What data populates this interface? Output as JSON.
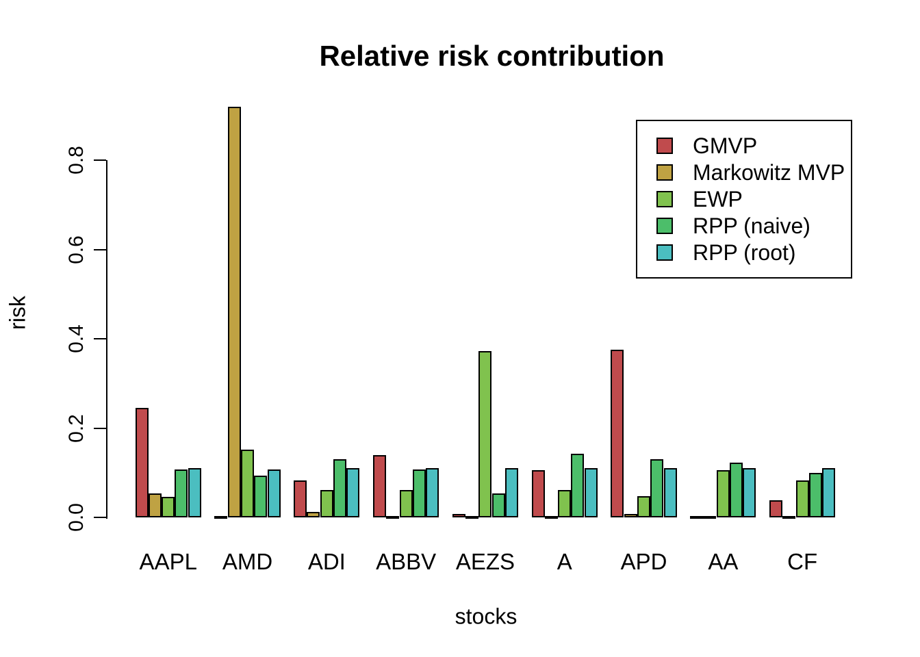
{
  "chart_data": {
    "type": "bar",
    "title": "Relative risk contribution",
    "xlabel": "stocks",
    "ylabel": "risk",
    "categories": [
      "AAPL",
      "AMD",
      "ADI",
      "ABBV",
      "AEZS",
      "A",
      "APD",
      "AA",
      "CF"
    ],
    "series": [
      {
        "name": "GMVP",
        "color": "#C04B4D",
        "values": [
          0.245,
          0.001,
          0.082,
          0.139,
          0.008,
          0.105,
          0.376,
          0.001,
          0.038
        ]
      },
      {
        "name": "Markowitz MVP",
        "color": "#BFA243",
        "values": [
          0.053,
          0.92,
          0.013,
          0.001,
          0.001,
          0.001,
          0.008,
          0.001,
          0.001
        ]
      },
      {
        "name": "EWP",
        "color": "#80C24E",
        "values": [
          0.046,
          0.152,
          0.061,
          0.061,
          0.372,
          0.061,
          0.047,
          0.105,
          0.082
        ]
      },
      {
        "name": "RPP (naive)",
        "color": "#4CBE6A",
        "values": [
          0.108,
          0.093,
          0.13,
          0.107,
          0.054,
          0.142,
          0.13,
          0.122,
          0.1
        ]
      },
      {
        "name": "RPP (root)",
        "color": "#4BBEC0",
        "values": [
          0.11,
          0.108,
          0.11,
          0.111,
          0.11,
          0.11,
          0.11,
          0.11,
          0.111
        ]
      }
    ],
    "ylim": [
      0,
      0.92
    ],
    "yticks": [
      0.0,
      0.2,
      0.4,
      0.6,
      0.8
    ],
    "ytick_format_decimals": 1,
    "grid": false,
    "legend_position": "top-right",
    "bar_border_color": "#000000",
    "axis_color": "#000000",
    "background_color": "#FFFFFF",
    "text_color": "#000000"
  }
}
